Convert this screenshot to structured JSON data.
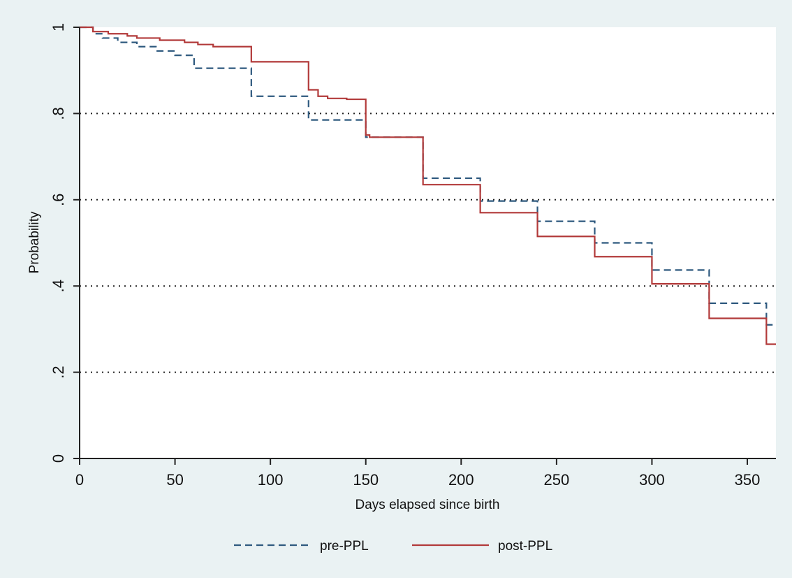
{
  "chart_data": {
    "type": "line",
    "subtype": "step",
    "title": "",
    "xlabel": "Days elapsed since birth",
    "ylabel": "Probability",
    "xlim": [
      0,
      365
    ],
    "ylim": [
      0,
      1
    ],
    "x_ticks": [
      0,
      50,
      100,
      150,
      200,
      250,
      300,
      350
    ],
    "x_tick_labels": [
      "0",
      "50",
      "100",
      "150",
      "200",
      "250",
      "300",
      "350"
    ],
    "y_ticks": [
      0,
      0.2,
      0.4,
      0.6,
      0.8,
      1
    ],
    "y_tick_labels": [
      "0",
      ".2",
      ".4",
      ".6",
      ".8",
      "1"
    ],
    "grid": "horizontal dotted",
    "legend_position": "bottom",
    "background_color": "#eaf2f3",
    "plot_background": "#ffffff",
    "series": [
      {
        "name": "pre-PPL",
        "color": "#2f5a7f",
        "dash": "dashed",
        "x": [
          0,
          7,
          12,
          20,
          30,
          40,
          50,
          60,
          90,
          120,
          150,
          180,
          210,
          240,
          270,
          300,
          330,
          360,
          365
        ],
        "y": [
          1.0,
          0.985,
          0.975,
          0.965,
          0.955,
          0.945,
          0.935,
          0.905,
          0.84,
          0.785,
          0.745,
          0.65,
          0.597,
          0.55,
          0.5,
          0.437,
          0.36,
          0.31,
          0.31
        ]
      },
      {
        "name": "post-PPL",
        "color": "#b23a3a",
        "dash": "solid",
        "x": [
          0,
          7,
          15,
          25,
          30,
          42,
          55,
          62,
          70,
          90,
          120,
          125,
          130,
          140,
          150,
          152,
          180,
          210,
          240,
          270,
          300,
          330,
          360,
          365
        ],
        "y": [
          1.0,
          0.99,
          0.985,
          0.98,
          0.975,
          0.97,
          0.965,
          0.96,
          0.955,
          0.92,
          0.855,
          0.84,
          0.835,
          0.833,
          0.75,
          0.745,
          0.635,
          0.57,
          0.515,
          0.468,
          0.405,
          0.325,
          0.265,
          0.265
        ]
      }
    ]
  }
}
